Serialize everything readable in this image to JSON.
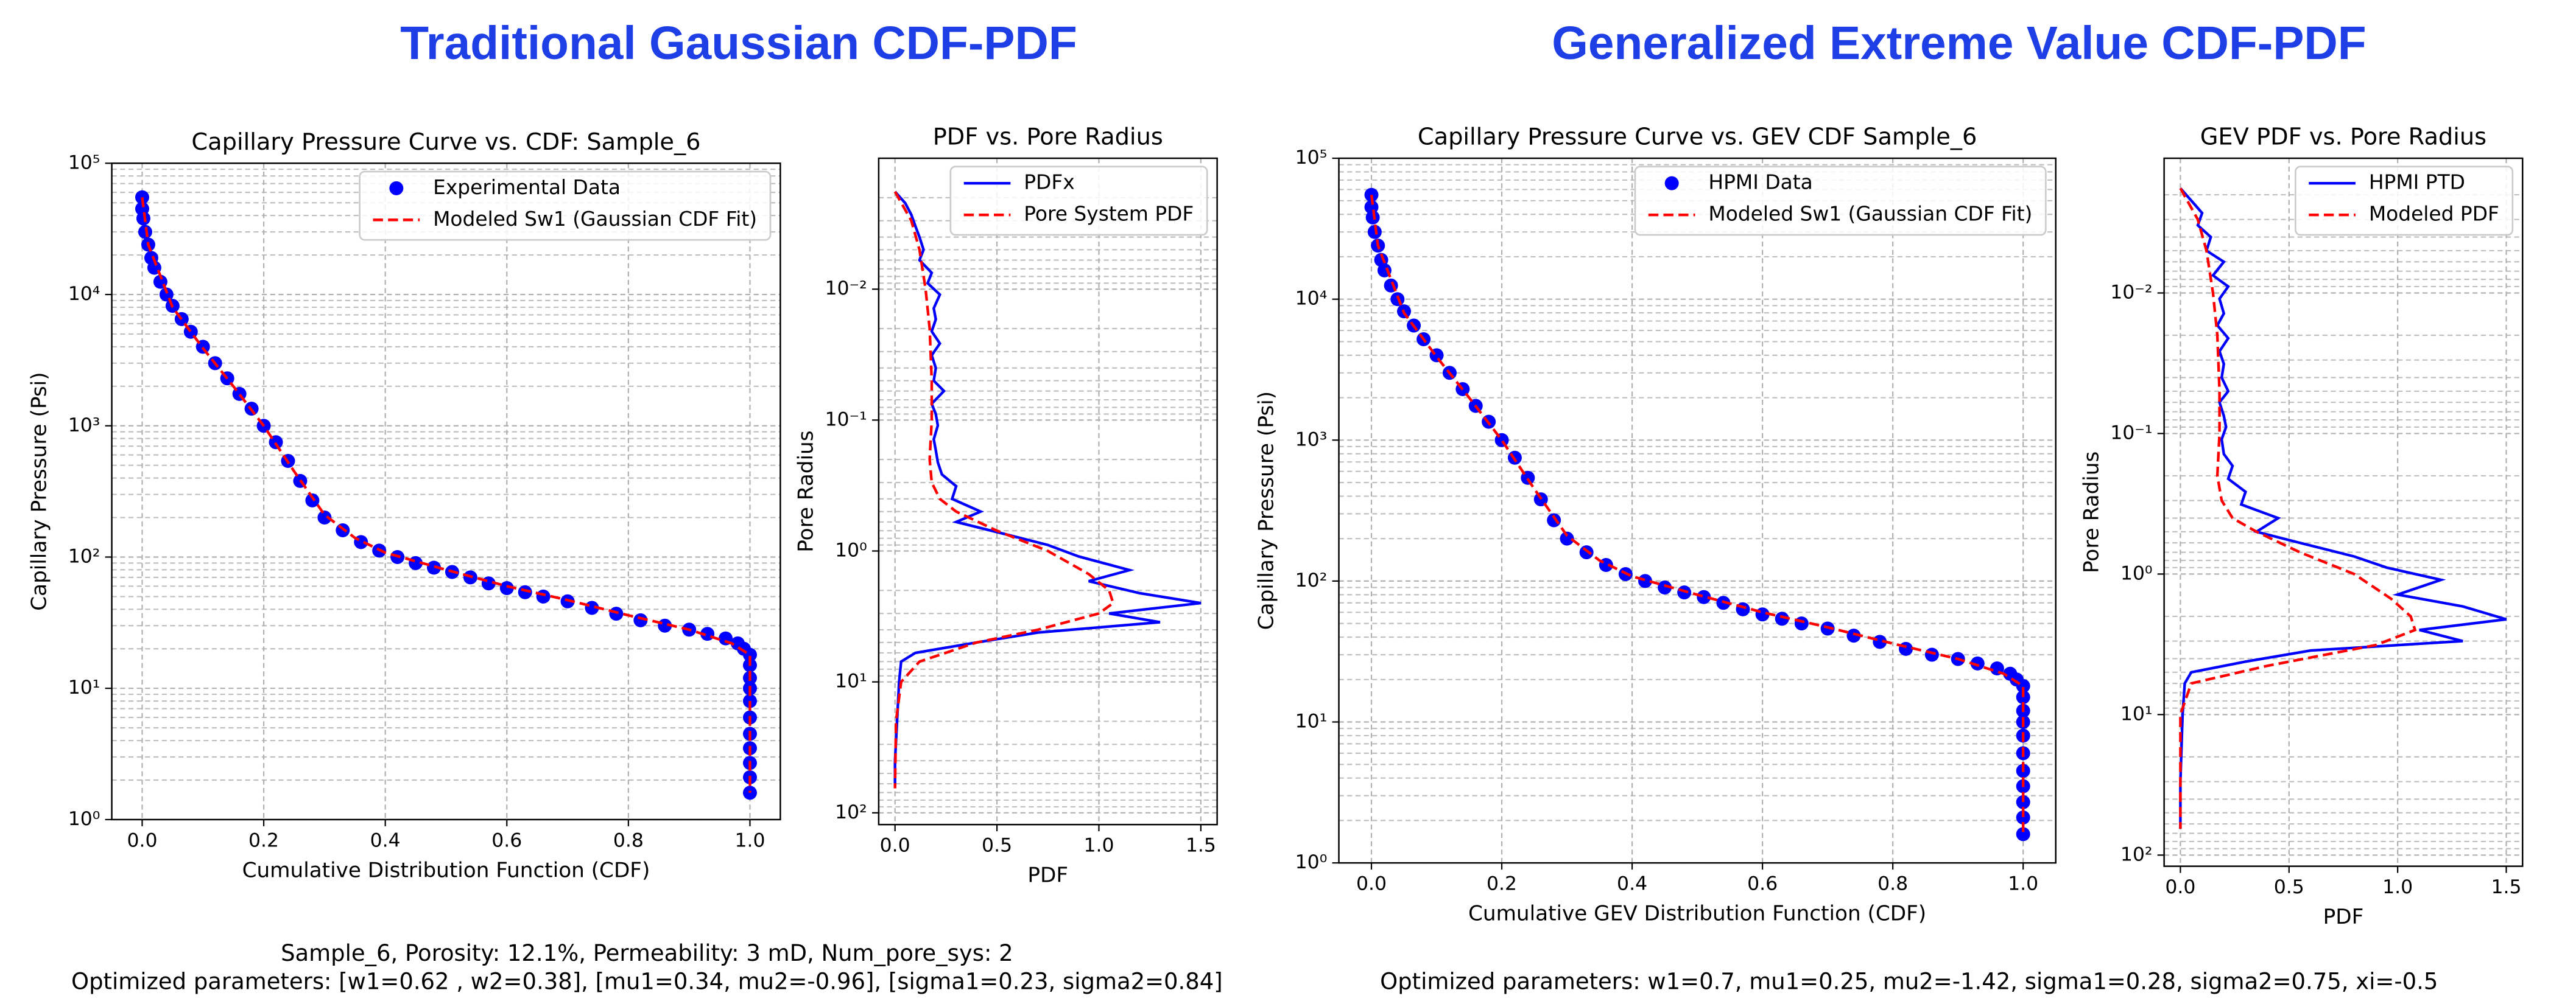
{
  "header": {
    "left": "Traditional Gaussian CDF-PDF",
    "right": "Generalized Extreme Value CDF-PDF"
  },
  "captions": {
    "left": [
      "Sample_6, Porosity: 12.1%,  Permeability: 3 mD,  Num_pore_sys: 2",
      "Optimized parameters:  [w1=0.62 , w2=0.38],  [mu1=0.34,  mu2=-0.96],  [sigma1=0.23,  sigma2=0.84]"
    ],
    "right": "Optimized parameters:  w1=0.7, mu1=0.25,  mu2=-1.42, sigma1=0.28,  sigma2=0.75,  xi=-0.5"
  },
  "chart_data": [
    {
      "type": "line",
      "title": "Capillary Pressure Curve vs. CDF: Sample_6",
      "xlabel": "Cumulative Distribution Function (CDF)",
      "ylabel": "Capillary Pressure (Psi)",
      "xlim": [
        -0.05,
        1.05
      ],
      "xticks": [
        {
          "value": 0,
          "label": "0.0"
        },
        {
          "value": 0.2,
          "label": "0.2"
        },
        {
          "value": 0.4,
          "label": "0.4"
        },
        {
          "value": 0.6,
          "label": "0.6"
        },
        {
          "value": 0.8,
          "label": "0.8"
        },
        {
          "value": 1,
          "label": "1.0"
        }
      ],
      "ylim": [
        1,
        100000
      ],
      "yscale": "log",
      "y_inverted": false,
      "yticks": [
        {
          "value": 1,
          "label": "10⁰"
        },
        {
          "value": 10,
          "label": "10¹"
        },
        {
          "value": 100,
          "label": "10²"
        },
        {
          "value": 1000,
          "label": "10³"
        },
        {
          "value": 10000,
          "label": "10⁴"
        },
        {
          "value": 100000,
          "label": "10⁵"
        }
      ],
      "grid": true,
      "minor_grid": true,
      "legend": "upper right",
      "series": [
        {
          "name": "Experimental Data",
          "color": "#0000ff",
          "style": "markers",
          "x": [
            0,
            0,
            0.002,
            0.005,
            0.01,
            0.015,
            0.02,
            0.03,
            0.04,
            0.05,
            0.065,
            0.08,
            0.1,
            0.12,
            0.14,
            0.16,
            0.18,
            0.2,
            0.22,
            0.24,
            0.26,
            0.28,
            0.3,
            0.33,
            0.36,
            0.39,
            0.42,
            0.45,
            0.48,
            0.51,
            0.54,
            0.57,
            0.6,
            0.63,
            0.66,
            0.7,
            0.74,
            0.78,
            0.82,
            0.86,
            0.9,
            0.93,
            0.96,
            0.98,
            0.99,
            1,
            1,
            1,
            1,
            1,
            1,
            1,
            1,
            1,
            1,
            1
          ],
          "values": [
            55000,
            45000,
            38000,
            30000,
            24000,
            19000,
            16000,
            12500,
            10000,
            8200,
            6500,
            5200,
            4000,
            3000,
            2300,
            1750,
            1350,
            1000,
            750,
            540,
            380,
            270,
            200,
            160,
            130,
            112,
            100,
            90,
            83,
            77,
            70,
            63,
            58,
            54,
            50,
            46,
            41,
            37,
            33,
            30,
            28,
            26,
            24,
            22,
            20,
            18,
            15,
            12,
            10,
            8,
            6,
            4.5,
            3.5,
            2.7,
            2.1,
            1.6
          ]
        },
        {
          "name": "Modeled Sw1 (Gaussian CDF Fit)",
          "color": "#ff0000",
          "style": "dashed",
          "x": [
            0,
            0.01,
            0.05,
            0.1,
            0.15,
            0.2,
            0.25,
            0.3,
            0.35,
            0.4,
            0.5,
            0.6,
            0.7,
            0.8,
            0.9,
            0.97,
            1,
            1
          ],
          "values": [
            55000,
            24000,
            8000,
            3900,
            2000,
            1000,
            450,
            210,
            140,
            108,
            80,
            60,
            47,
            36,
            28,
            22,
            18,
            1.6
          ]
        }
      ]
    },
    {
      "type": "line",
      "title": "PDF vs. Pore Radius",
      "xlabel": "PDF",
      "ylabel": "Pore Radius",
      "xlim": [
        -0.08,
        1.58
      ],
      "xticks": [
        {
          "value": 0,
          "label": "0.0"
        },
        {
          "value": 0.5,
          "label": "0.5"
        },
        {
          "value": 1,
          "label": "1.0"
        },
        {
          "value": 1.5,
          "label": "1.5"
        }
      ],
      "ylim": [
        0.001,
        123
      ],
      "yscale": "log",
      "y_inverted": true,
      "yticks": [
        {
          "value": 0.01,
          "label": "10⁻²"
        },
        {
          "value": 0.1,
          "label": "10⁻¹"
        },
        {
          "value": 1,
          "label": "10⁰"
        },
        {
          "value": 10,
          "label": "10¹"
        },
        {
          "value": 100,
          "label": "10²"
        }
      ],
      "grid": true,
      "minor_grid": true,
      "legend": "upper right",
      "series": [
        {
          "name": "PDFx",
          "color": "#0000ff",
          "style": "solid",
          "x": [
            0,
            0.05,
            0.08,
            0.1,
            0.12,
            0.14,
            0.12,
            0.18,
            0.16,
            0.22,
            0.19,
            0.2,
            0.18,
            0.22,
            0.18,
            0.2,
            0.19,
            0.24,
            0.18,
            0.2,
            0.21,
            0.19,
            0.2,
            0.21,
            0.23,
            0.3,
            0.28,
            0.42,
            0.3,
            0.55,
            0.75,
            0.9,
            1.15,
            0.95,
            1.2,
            1.5,
            1.05,
            1.3,
            0.7,
            0.4,
            0.1,
            0.03,
            0.02,
            0.01,
            0,
            0
          ],
          "values": [
            0.0018,
            0.0022,
            0.0027,
            0.0033,
            0.004,
            0.005,
            0.006,
            0.0075,
            0.009,
            0.011,
            0.014,
            0.017,
            0.021,
            0.026,
            0.032,
            0.04,
            0.05,
            0.06,
            0.075,
            0.09,
            0.11,
            0.14,
            0.17,
            0.21,
            0.26,
            0.32,
            0.4,
            0.5,
            0.6,
            0.75,
            0.9,
            1.1,
            1.4,
            1.7,
            2.1,
            2.5,
            3,
            3.5,
            4.2,
            5,
            6,
            7,
            10,
            20,
            40,
            65
          ]
        },
        {
          "name": "Pore System PDF",
          "color": "#ff0000",
          "style": "dashed",
          "x": [
            0,
            0.08,
            0.12,
            0.15,
            0.17,
            0.18,
            0.18,
            0.17,
            0.18,
            0.22,
            0.3,
            0.5,
            0.75,
            0.95,
            1.05,
            1.07,
            1,
            0.7,
            0.4,
            0.12,
            0.03,
            0.005,
            0
          ],
          "values": [
            0.0018,
            0.003,
            0.005,
            0.01,
            0.02,
            0.05,
            0.1,
            0.2,
            0.3,
            0.4,
            0.5,
            0.7,
            1,
            1.5,
            2,
            2.5,
            3,
            4,
            5,
            7,
            10,
            20,
            65
          ]
        }
      ]
    },
    {
      "type": "line",
      "title": "Capillary Pressure Curve vs. GEV CDF Sample_6",
      "xlabel": "Cumulative GEV Distribution Function (CDF)",
      "ylabel": "Capillary Pressure (Psi)",
      "xlim": [
        -0.05,
        1.05
      ],
      "xticks": [
        {
          "value": 0,
          "label": "0.0"
        },
        {
          "value": 0.2,
          "label": "0.2"
        },
        {
          "value": 0.4,
          "label": "0.4"
        },
        {
          "value": 0.6,
          "label": "0.6"
        },
        {
          "value": 0.8,
          "label": "0.8"
        },
        {
          "value": 1,
          "label": "1.0"
        }
      ],
      "ylim": [
        1,
        100000
      ],
      "yscale": "log",
      "y_inverted": false,
      "yticks": [
        {
          "value": 1,
          "label": "10⁰"
        },
        {
          "value": 10,
          "label": "10¹"
        },
        {
          "value": 100,
          "label": "10²"
        },
        {
          "value": 1000,
          "label": "10³"
        },
        {
          "value": 10000,
          "label": "10⁴"
        },
        {
          "value": 100000,
          "label": "10⁵"
        }
      ],
      "grid": true,
      "minor_grid": true,
      "legend": "upper right",
      "series": [
        {
          "name": "HPMI Data",
          "color": "#0000ff",
          "style": "markers",
          "x": [
            0,
            0,
            0.002,
            0.005,
            0.01,
            0.015,
            0.02,
            0.03,
            0.04,
            0.05,
            0.065,
            0.08,
            0.1,
            0.12,
            0.14,
            0.16,
            0.18,
            0.2,
            0.22,
            0.24,
            0.26,
            0.28,
            0.3,
            0.33,
            0.36,
            0.39,
            0.42,
            0.45,
            0.48,
            0.51,
            0.54,
            0.57,
            0.6,
            0.63,
            0.66,
            0.7,
            0.74,
            0.78,
            0.82,
            0.86,
            0.9,
            0.93,
            0.96,
            0.98,
            0.99,
            1,
            1,
            1,
            1,
            1,
            1,
            1,
            1,
            1,
            1,
            1
          ],
          "values": [
            55000,
            45000,
            38000,
            30000,
            24000,
            19000,
            16000,
            12500,
            10000,
            8200,
            6500,
            5200,
            4000,
            3000,
            2300,
            1750,
            1350,
            1000,
            750,
            540,
            380,
            270,
            200,
            160,
            130,
            112,
            100,
            90,
            83,
            77,
            70,
            63,
            58,
            54,
            50,
            46,
            41,
            37,
            33,
            30,
            28,
            26,
            24,
            22,
            20,
            18,
            15,
            12,
            10,
            8,
            6,
            4.5,
            3.5,
            2.7,
            2.1,
            1.6
          ]
        },
        {
          "name": "Modeled Sw1 (Gaussian CDF Fit)",
          "color": "#ff0000",
          "style": "dashed",
          "x": [
            0,
            0.01,
            0.05,
            0.1,
            0.15,
            0.2,
            0.25,
            0.3,
            0.35,
            0.4,
            0.5,
            0.6,
            0.7,
            0.8,
            0.9,
            0.97,
            1,
            1
          ],
          "values": [
            55000,
            24000,
            8000,
            3900,
            2000,
            1000,
            450,
            210,
            140,
            108,
            80,
            60,
            47,
            36,
            28,
            22,
            18,
            1.6
          ]
        }
      ]
    },
    {
      "type": "line",
      "title": "GEV PDF vs. Pore Radius",
      "xlabel": "PDF",
      "ylabel": "Pore Radius",
      "xlim": [
        -0.075,
        1.575
      ],
      "xticks": [
        {
          "value": 0,
          "label": "0.0"
        },
        {
          "value": 0.5,
          "label": "0.5"
        },
        {
          "value": 1,
          "label": "1.0"
        },
        {
          "value": 1.5,
          "label": "1.5"
        }
      ],
      "ylim": [
        0.0011,
        120
      ],
      "yscale": "log",
      "y_inverted": true,
      "yticks": [
        {
          "value": 0.01,
          "label": "10⁻²"
        },
        {
          "value": 0.1,
          "label": "10⁻¹"
        },
        {
          "value": 1,
          "label": "10⁰"
        },
        {
          "value": 10,
          "label": "10¹"
        },
        {
          "value": 100,
          "label": "10²"
        }
      ],
      "grid": true,
      "minor_grid": true,
      "legend": "upper right",
      "series": [
        {
          "name": "HPMI PTD",
          "color": "#0000ff",
          "style": "solid",
          "x": [
            0,
            0.05,
            0.1,
            0.08,
            0.14,
            0.12,
            0.2,
            0.15,
            0.22,
            0.18,
            0.2,
            0.17,
            0.22,
            0.18,
            0.2,
            0.19,
            0.22,
            0.18,
            0.2,
            0.21,
            0.19,
            0.2,
            0.24,
            0.22,
            0.3,
            0.28,
            0.45,
            0.35,
            0.55,
            0.8,
            0.95,
            1.2,
            1.0,
            1.3,
            1.5,
            1.1,
            1.3,
            0.6,
            0.3,
            0.05,
            0.02,
            0.01,
            0,
            0
          ],
          "values": [
            0.0018,
            0.0022,
            0.0027,
            0.0033,
            0.004,
            0.005,
            0.006,
            0.0075,
            0.009,
            0.011,
            0.014,
            0.017,
            0.021,
            0.026,
            0.032,
            0.04,
            0.05,
            0.06,
            0.075,
            0.09,
            0.11,
            0.14,
            0.17,
            0.21,
            0.26,
            0.32,
            0.4,
            0.5,
            0.6,
            0.75,
            0.9,
            1.1,
            1.4,
            1.7,
            2.1,
            2.5,
            3,
            3.5,
            4.2,
            5,
            6,
            10,
            30,
            65
          ]
        },
        {
          "name": "Modeled PDF",
          "color": "#ff0000",
          "style": "dashed",
          "x": [
            0,
            0.08,
            0.12,
            0.15,
            0.17,
            0.18,
            0.18,
            0.17,
            0.19,
            0.24,
            0.35,
            0.55,
            0.8,
            0.97,
            1.06,
            1.08,
            0.9,
            0.4,
            0.05,
            0,
            0
          ],
          "values": [
            0.0018,
            0.003,
            0.005,
            0.01,
            0.02,
            0.05,
            0.1,
            0.2,
            0.3,
            0.4,
            0.5,
            0.7,
            1,
            1.5,
            2,
            2.5,
            3.2,
            4.5,
            6,
            10,
            65
          ]
        }
      ]
    }
  ]
}
